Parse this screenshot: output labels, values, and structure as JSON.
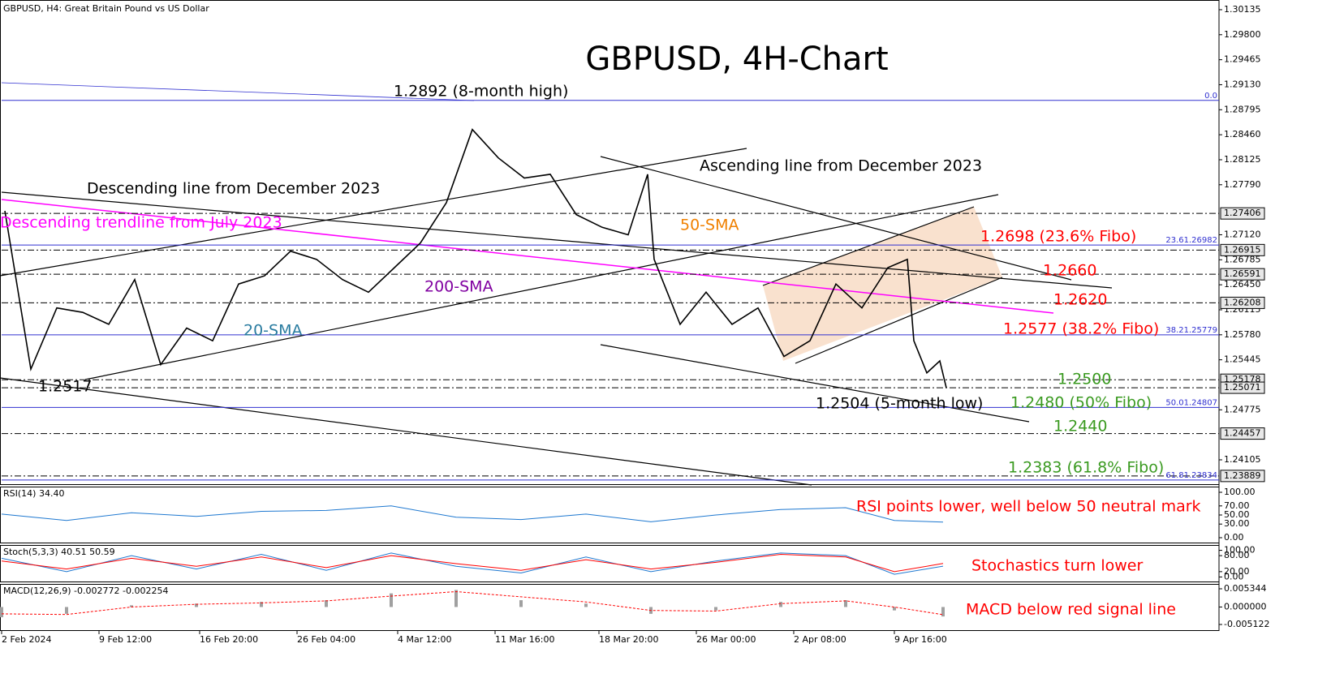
{
  "chart_data": [
    {
      "type": "line",
      "header": "GBPUSD, H4:  Great Britain Pound vs US Dollar",
      "title": "GBPUSD, 4H-Chart",
      "x": [
        1,
        9,
        17,
        25,
        33,
        41,
        49,
        57,
        65,
        73,
        81,
        89,
        97,
        105,
        113,
        121,
        129,
        137,
        145,
        153,
        161,
        169,
        177,
        185,
        193,
        199,
        201,
        209,
        217,
        225,
        233,
        241,
        249,
        257,
        265,
        273,
        279,
        281,
        285,
        289,
        291
      ],
      "values": [
        1.2744,
        1.2532,
        1.2614,
        1.2608,
        1.2592,
        1.2652,
        1.2538,
        1.2587,
        1.257,
        1.2646,
        1.2657,
        1.269,
        1.2679,
        1.2652,
        1.2635,
        1.2668,
        1.2701,
        1.2755,
        1.2853,
        1.2815,
        1.2788,
        1.2793,
        1.2739,
        1.2722,
        1.2712,
        1.2793,
        1.2679,
        1.2592,
        1.2635,
        1.2592,
        1.2614,
        1.2549,
        1.257,
        1.2646,
        1.2614,
        1.2668,
        1.2679,
        1.257,
        1.2527,
        1.2543,
        1.2507
      ],
      "color": "#000000",
      "xlim": [
        0,
        375
      ],
      "xticks": [
        {
          "value": 0,
          "label": "2 Feb 2024"
        },
        {
          "value": 30,
          "label": "9 Feb 12:00"
        },
        {
          "value": 61,
          "label": "16 Feb 20:00"
        },
        {
          "value": 91,
          "label": "26 Feb 04:00"
        },
        {
          "value": 122,
          "label": "4 Mar 12:00"
        },
        {
          "value": 152,
          "label": "11 Mar 16:00"
        },
        {
          "value": 184,
          "label": "18 Mar 20:00"
        },
        {
          "value": 214,
          "label": "26 Mar 00:00"
        },
        {
          "value": 244,
          "label": "2 Apr 08:00"
        },
        {
          "value": 275,
          "label": "9 Apr 16:00"
        }
      ],
      "ylim": [
        1.23768,
        1.30265
      ],
      "yticks": [
        {
          "value": 1.30135,
          "label": "1.30135"
        },
        {
          "value": 1.298,
          "label": "1.29800"
        },
        {
          "value": 1.29465,
          "label": "1.29465"
        },
        {
          "value": 1.2913,
          "label": "1.29130"
        },
        {
          "value": 1.28795,
          "label": "1.28795"
        },
        {
          "value": 1.2846,
          "label": "1.28460"
        },
        {
          "value": 1.28125,
          "label": "1.28125"
        },
        {
          "value": 1.2779,
          "label": "1.27790"
        },
        {
          "value": 1.2712,
          "label": "1.27120"
        },
        {
          "value": 1.26785,
          "label": "1.26785"
        },
        {
          "value": 1.2645,
          "label": "1.26450"
        },
        {
          "value": 1.26115,
          "label": "1.26115"
        },
        {
          "value": 1.2578,
          "label": "1.25780"
        },
        {
          "value": 1.25445,
          "label": "1.25445"
        },
        {
          "value": 1.24775,
          "label": "1.24775"
        },
        {
          "value": 1.24105,
          "label": "1.24105"
        }
      ],
      "price_levels": [
        {
          "value": 1.27406,
          "label": "1.27406"
        },
        {
          "value": 1.26915,
          "label": "1.26915"
        },
        {
          "value": 1.26591,
          "label": "1.26591"
        },
        {
          "value": 1.26208,
          "label": "1.26208"
        },
        {
          "value": 1.25178,
          "label": "1.25178"
        },
        {
          "value": 1.25071,
          "label": "1.25071"
        },
        {
          "value": 1.24457,
          "label": "1.24457"
        },
        {
          "value": 1.23889,
          "label": "1.23889"
        }
      ],
      "fib_levels": [
        {
          "value": 1.2892,
          "label": "0.0"
        },
        {
          "value": 1.26982,
          "label": "23.61.26982"
        },
        {
          "value": 1.25779,
          "label": "38.21.25779"
        },
        {
          "value": 1.24807,
          "label": "50.01.24807"
        },
        {
          "value": 1.23834,
          "label": "61.81.23834"
        }
      ],
      "annotations": [
        {
          "text": "1.2892 (8-month high)",
          "color": "#000000"
        },
        {
          "text": "Descending line from December 2023",
          "color": "#000000"
        },
        {
          "text": "Descending trendline from July 2023",
          "color": "#ff00ff"
        },
        {
          "text": "Ascending line from December 2023",
          "color": "#000000"
        },
        {
          "text": "50-SMA",
          "color": "#f08000"
        },
        {
          "text": "200-SMA",
          "color": "#8000a0"
        },
        {
          "text": "20-SMA",
          "color": "#2a7ca0"
        },
        {
          "text": "1.2517",
          "color": "#000000"
        },
        {
          "text": "1.2698 (23.6% Fibo)",
          "color": "#ff0000"
        },
        {
          "text": "1.2660",
          "color": "#ff0000"
        },
        {
          "text": "1.2620",
          "color": "#ff0000"
        },
        {
          "text": "1.2577 (38.2% Fibo)",
          "color": "#ff0000"
        },
        {
          "text": "1.2500",
          "color": "#3a9a20"
        },
        {
          "text": "1.2480 (50% Fibo)",
          "color": "#3a9a20"
        },
        {
          "text": "1.2504 (5-month low)",
          "color": "#000000"
        },
        {
          "text": "1.2440",
          "color": "#3a9a20"
        },
        {
          "text": "1.2383 (61.8% Fibo)",
          "color": "#3a9a20"
        }
      ]
    },
    {
      "type": "line",
      "title": "RSI(14) 34.40",
      "note": "RSI points lower, well below 50 neutral mark",
      "x": [
        0,
        20,
        40,
        60,
        80,
        100,
        120,
        140,
        160,
        180,
        200,
        220,
        240,
        260,
        275,
        290
      ],
      "values": [
        52,
        38,
        55,
        47,
        58,
        60,
        70,
        45,
        40,
        52,
        35,
        50,
        62,
        66,
        38,
        34.4
      ],
      "color": "#1e78d0",
      "ylim": [
        -12.5,
        112.5
      ],
      "yticks": [
        {
          "value": 100,
          "label": "100.00"
        },
        {
          "value": 70,
          "label": "70.00"
        },
        {
          "value": 50,
          "label": "50.00"
        },
        {
          "value": 30,
          "label": "30.00"
        },
        {
          "value": 0,
          "label": "0.00"
        }
      ]
    },
    {
      "type": "line",
      "title": "Stoch(5,3,3) 40.51 50.59",
      "note": "Stochastics turn lower",
      "x": [
        0,
        20,
        40,
        60,
        80,
        100,
        120,
        140,
        160,
        180,
        200,
        220,
        240,
        260,
        275,
        290
      ],
      "series": [
        {
          "color": "#1e78d0",
          "values": [
            70,
            20,
            80,
            30,
            85,
            25,
            90,
            40,
            15,
            75,
            20,
            60,
            90,
            80,
            10,
            40.51
          ]
        },
        {
          "color": "#ff0000",
          "values": [
            60,
            30,
            70,
            40,
            75,
            35,
            80,
            50,
            25,
            65,
            30,
            55,
            85,
            75,
            20,
            50.59
          ]
        }
      ],
      "ylim": [
        -20,
        120
      ],
      "yticks": [
        {
          "value": 100,
          "label": "100.00"
        },
        {
          "value": 80,
          "label": "80.00"
        },
        {
          "value": 20,
          "label": "20.00"
        },
        {
          "value": 0,
          "label": "0.00"
        }
      ]
    },
    {
      "type": "macd",
      "title": "MACD(12,26,9) -0.002772 -0.002254",
      "note": "MACD below red signal line",
      "x": [
        0,
        20,
        40,
        60,
        80,
        100,
        120,
        140,
        160,
        180,
        200,
        220,
        240,
        260,
        275,
        290
      ],
      "values": [
        -0.003,
        -0.002,
        0.0005,
        0.001,
        0.0015,
        0.002,
        0.004,
        0.005,
        0.002,
        0.001,
        -0.002,
        -0.001,
        0.0015,
        0.002,
        -0.001,
        -0.002772
      ],
      "color": "#a0a0a0",
      "signal": [
        -0.002,
        -0.0022,
        0,
        0.0008,
        0.0012,
        0.0018,
        0.0032,
        0.0045,
        0.003,
        0.0015,
        -0.001,
        -0.0012,
        0.001,
        0.0018,
        0,
        -0.002254
      ],
      "signal_color": "#ff0000",
      "ylim": [
        -0.007025,
        0.006771
      ],
      "yticks": [
        {
          "value": 0.005344,
          "label": "0.005344"
        },
        {
          "value": 0,
          "label": "0.000000"
        },
        {
          "value": -0.005122,
          "label": "-0.005122"
        }
      ]
    }
  ]
}
